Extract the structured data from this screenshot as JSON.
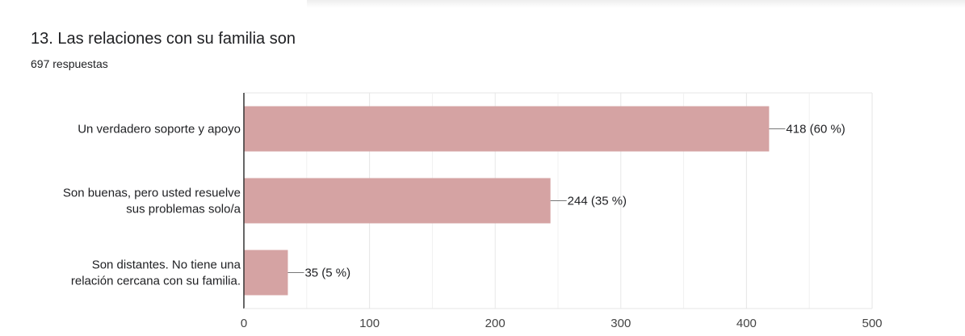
{
  "question": {
    "title": "13. Las relaciones con su familia son",
    "response_count": "697 respuestas"
  },
  "colors": {
    "bar": "#d5a3a3",
    "grid": "#e6e6e6",
    "axis": "#333333",
    "leader": "#777777"
  },
  "chart_data": {
    "type": "bar",
    "orientation": "horizontal",
    "categories": [
      [
        "Un verdadero soporte y apoyo"
      ],
      [
        "Son buenas, pero usted resuelve",
        "sus problemas solo/a"
      ],
      [
        "Son distantes. No tiene una",
        "relación cercana con su familia."
      ]
    ],
    "values": [
      418,
      244,
      35
    ],
    "value_labels": [
      "418 (60 %)",
      "244 (35 %)",
      "35 (5 %)"
    ],
    "xlim": [
      0,
      500
    ],
    "x_ticks": [
      0,
      100,
      200,
      300,
      400,
      500
    ],
    "grid": true,
    "legend": "none"
  }
}
